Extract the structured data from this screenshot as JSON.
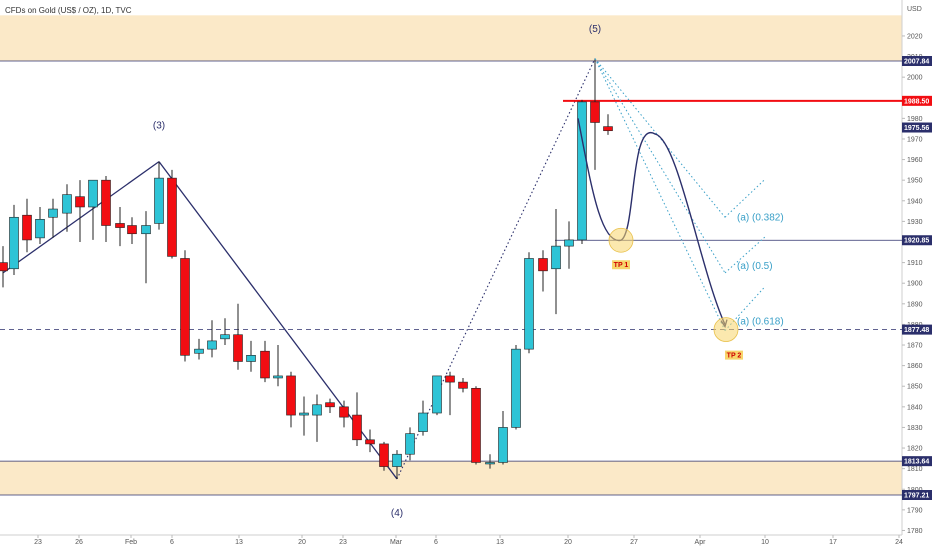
{
  "header": {
    "symbol_line": "CFDs on Gold (US$ / OZ), 1D, TVC"
  },
  "currency": "USD",
  "colors": {
    "up": "#2ec4d6",
    "down": "#f20d12",
    "zone": "#fbe9c8",
    "resistance": "#f20d12",
    "wave": "#2b2f6b",
    "fib": "#3aa0c8",
    "tp_marker": "#f7d56b",
    "dark_tag": "#2b2f6b"
  },
  "chart_data": {
    "type": "candlestick",
    "title": "CFDs on Gold (US$ / OZ), 1D, TVC",
    "ylim": [
      1780,
      2030
    ],
    "y_ticks": [
      1780,
      1790,
      1800,
      1810,
      1820,
      1830,
      1840,
      1850,
      1860,
      1870,
      1880,
      1890,
      1900,
      1910,
      1920,
      1930,
      1940,
      1950,
      1960,
      1970,
      1980,
      2000,
      2010,
      2020
    ],
    "x_tick_labels": [
      "23",
      "26",
      "Feb",
      "6",
      "13",
      "20",
      "23",
      "Mar",
      "6",
      "13",
      "20",
      "27",
      "Apr",
      "10",
      "17",
      "24"
    ],
    "candles": [
      {
        "date": "2023-01-16",
        "open": 1910,
        "high": 1918,
        "low": 1898,
        "close": 1906
      },
      {
        "date": "2023-01-17",
        "open": 1907,
        "high": 1938,
        "low": 1904,
        "close": 1932
      },
      {
        "date": "2023-01-18",
        "open": 1933,
        "high": 1941,
        "low": 1915,
        "close": 1921
      },
      {
        "date": "2023-01-19",
        "open": 1922,
        "high": 1937,
        "low": 1919,
        "close": 1931
      },
      {
        "date": "2023-01-20",
        "open": 1932,
        "high": 1941,
        "low": 1922,
        "close": 1936
      },
      {
        "date": "2023-01-23",
        "open": 1934,
        "high": 1948,
        "low": 1925,
        "close": 1943
      },
      {
        "date": "2023-01-24",
        "open": 1942,
        "high": 1950,
        "low": 1920,
        "close": 1937
      },
      {
        "date": "2023-01-25",
        "open": 1937,
        "high": 1950,
        "low": 1921,
        "close": 1950
      },
      {
        "date": "2023-01-26",
        "open": 1950,
        "high": 1952,
        "low": 1920,
        "close": 1928
      },
      {
        "date": "2023-01-27",
        "open": 1929,
        "high": 1937,
        "low": 1918,
        "close": 1927
      },
      {
        "date": "2023-01-30",
        "open": 1928,
        "high": 1932,
        "low": 1919,
        "close": 1924
      },
      {
        "date": "2023-01-31",
        "open": 1924,
        "high": 1935,
        "low": 1900,
        "close": 1928
      },
      {
        "date": "2023-02-01",
        "open": 1929,
        "high": 1959,
        "low": 1926,
        "close": 1951
      },
      {
        "date": "2023-02-02",
        "open": 1951,
        "high": 1955,
        "low": 1912,
        "close": 1913
      },
      {
        "date": "2023-02-03",
        "open": 1912,
        "high": 1916,
        "low": 1862,
        "close": 1865
      },
      {
        "date": "2023-02-06",
        "open": 1866,
        "high": 1873,
        "low": 1863,
        "close": 1868
      },
      {
        "date": "2023-02-07",
        "open": 1868,
        "high": 1882,
        "low": 1864,
        "close": 1872
      },
      {
        "date": "2023-02-08",
        "open": 1873,
        "high": 1883,
        "low": 1870,
        "close": 1875
      },
      {
        "date": "2023-02-09",
        "open": 1875,
        "high": 1890,
        "low": 1858,
        "close": 1862
      },
      {
        "date": "2023-02-10",
        "open": 1862,
        "high": 1872,
        "low": 1857,
        "close": 1865
      },
      {
        "date": "2023-02-13",
        "open": 1867,
        "high": 1872,
        "low": 1852,
        "close": 1854
      },
      {
        "date": "2023-02-14",
        "open": 1854,
        "high": 1870,
        "low": 1850,
        "close": 1855
      },
      {
        "date": "2023-02-15",
        "open": 1855,
        "high": 1857,
        "low": 1830,
        "close": 1836
      },
      {
        "date": "2023-02-16",
        "open": 1836,
        "high": 1845,
        "low": 1826,
        "close": 1837
      },
      {
        "date": "2023-02-17",
        "open": 1836,
        "high": 1846,
        "low": 1823,
        "close": 1841
      },
      {
        "date": "2023-02-20",
        "open": 1842,
        "high": 1844,
        "low": 1837,
        "close": 1840
      },
      {
        "date": "2023-02-21",
        "open": 1840,
        "high": 1843,
        "low": 1830,
        "close": 1835
      },
      {
        "date": "2023-02-22",
        "open": 1836,
        "high": 1847,
        "low": 1821,
        "close": 1824
      },
      {
        "date": "2023-02-23",
        "open": 1824,
        "high": 1829,
        "low": 1818,
        "close": 1822
      },
      {
        "date": "2023-02-24",
        "open": 1822,
        "high": 1823,
        "low": 1809,
        "close": 1811
      },
      {
        "date": "2023-02-27",
        "open": 1811,
        "high": 1819,
        "low": 1805,
        "close": 1817
      },
      {
        "date": "2023-02-28",
        "open": 1817,
        "high": 1830,
        "low": 1814,
        "close": 1827
      },
      {
        "date": "2023-03-01",
        "open": 1828,
        "high": 1843,
        "low": 1826,
        "close": 1837
      },
      {
        "date": "2023-03-02",
        "open": 1837,
        "high": 1855,
        "low": 1836,
        "close": 1855
      },
      {
        "date": "2023-03-03",
        "open": 1855,
        "high": 1857,
        "low": 1836,
        "close": 1852
      },
      {
        "date": "2023-03-06",
        "open": 1852,
        "high": 1854,
        "low": 1847,
        "close": 1849
      },
      {
        "date": "2023-03-07",
        "open": 1849,
        "high": 1850,
        "low": 1812,
        "close": 1813
      },
      {
        "date": "2023-03-08",
        "open": 1813,
        "high": 1817,
        "low": 1810,
        "close": 1813
      },
      {
        "date": "2023-03-09",
        "open": 1813,
        "high": 1838,
        "low": 1812,
        "close": 1830
      },
      {
        "date": "2023-03-10",
        "open": 1830,
        "high": 1870,
        "low": 1829,
        "close": 1868
      },
      {
        "date": "2023-03-13",
        "open": 1868,
        "high": 1915,
        "low": 1866,
        "close": 1912
      },
      {
        "date": "2023-03-14",
        "open": 1912,
        "high": 1916,
        "low": 1896,
        "close": 1906
      },
      {
        "date": "2023-03-15",
        "open": 1907,
        "high": 1936,
        "low": 1885,
        "close": 1918
      },
      {
        "date": "2023-03-16",
        "open": 1918,
        "high": 1930,
        "low": 1907,
        "close": 1921
      },
      {
        "date": "2023-03-17",
        "open": 1921,
        "high": 1989,
        "low": 1919,
        "close": 1988
      },
      {
        "date": "2023-03-20",
        "open": 1988,
        "high": 2009,
        "low": 1955,
        "close": 1978
      },
      {
        "date": "2023-03-21",
        "open": 1976,
        "high": 1982,
        "low": 1972,
        "close": 1974
      }
    ],
    "horizontal_levels": [
      {
        "price": 2007.84,
        "label": "2007.84",
        "style": "dark-line"
      },
      {
        "price": 1988.5,
        "label": "1988.50",
        "style": "red-line"
      },
      {
        "price": 1975.56,
        "label": "1975.56",
        "style": "dark-tag"
      },
      {
        "price": 1920.85,
        "label": "1920.85",
        "style": "dark-line"
      },
      {
        "price": 1877.48,
        "label": "1877.48",
        "style": "dashed-line"
      },
      {
        "price": 1813.64,
        "label": "1813.64",
        "style": "dark-line"
      },
      {
        "price": 1797.21,
        "label": "1797.21",
        "style": "dark-line"
      }
    ],
    "zones": [
      {
        "from": 2007.84,
        "to": 2030
      },
      {
        "from": 1797.21,
        "to": 1813.64
      }
    ],
    "wave_labels": [
      {
        "text": "(3)",
        "date": "2023-02-01",
        "price": 1975
      },
      {
        "text": "(4)",
        "date": "2023-02-27",
        "price": 1787
      },
      {
        "text": "(5)",
        "date": "2023-03-20",
        "price": 2022
      }
    ],
    "wave_lines": [
      {
        "from": {
          "date": "2023-01-16",
          "price": 1905
        },
        "to": {
          "date": "2023-02-01",
          "price": 1959
        }
      },
      {
        "from": {
          "date": "2023-02-01",
          "price": 1959
        },
        "to": {
          "date": "2023-02-27",
          "price": 1805
        }
      },
      {
        "from": {
          "date": "2023-02-27",
          "price": 1805
        },
        "to": {
          "date": "2023-03-20",
          "price": 2009
        }
      }
    ],
    "fib_labels": [
      "(a) (0.382)",
      "(a) (0.5)",
      "(a) (0.618)"
    ],
    "fib_levels": [
      0.382,
      0.5,
      0.618
    ],
    "targets": [
      {
        "label": "TP 1",
        "date": "2023-03-23",
        "price": 1920.85
      },
      {
        "label": "TP 2",
        "date": "2023-04-03",
        "price": 1877.48
      }
    ],
    "projection_path": [
      {
        "date": "2023-03-20",
        "price": 1980
      },
      {
        "date": "2023-03-23",
        "price": 1920.85
      },
      {
        "date": "2023-03-27",
        "price": 1970
      },
      {
        "date": "2023-04-03",
        "price": 1877.48
      }
    ]
  }
}
